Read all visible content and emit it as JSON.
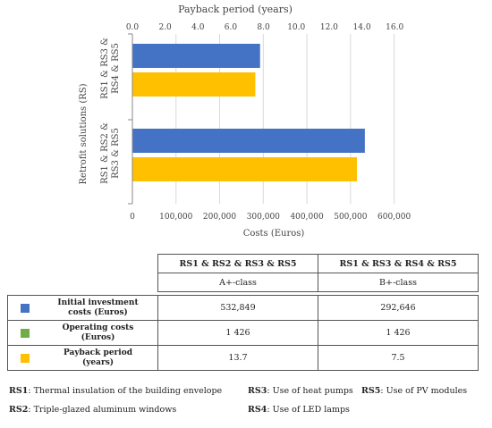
{
  "chart_data": {
    "type": "bar",
    "orientation": "horizontal",
    "categories": [
      "RS1 & RS3 & RS4 & RS5",
      "RS1 & RS2 & RS3 & RS5"
    ],
    "category_labels": [
      [
        "RS1 & RS3 &",
        "RS4 & RS5"
      ],
      [
        "RS1 & RS2 &",
        "RS3 & RS5"
      ]
    ],
    "ylabel": "Retrofit solutions (RS)",
    "series": [
      {
        "name": "Initial investment costs (Euros)",
        "axis": "bottom",
        "color": "#4472C4",
        "values": [
          292646,
          532849
        ]
      },
      {
        "name": "Payback period (years)",
        "axis": "top",
        "color": "#FFC000",
        "values": [
          7.5,
          13.7
        ]
      }
    ],
    "bottom_axis": {
      "label": "Costs (Euros)",
      "ticks": [
        "0",
        "100,000",
        "200,000",
        "300,000",
        "400,000",
        "500,000",
        "600,000"
      ],
      "min": 0,
      "max": 650000
    },
    "top_axis": {
      "label": "Payback period (years)",
      "ticks": [
        "0.0",
        "2.0",
        "4.0",
        "6.0",
        "8.0",
        "10.0",
        "12.0",
        "14.0",
        "16.0"
      ],
      "min": 0,
      "max": 17.3
    },
    "grid": true
  },
  "table": {
    "columns": [
      "RS1 & RS2 & RS3 & RS5",
      "RS1 & RS3 & RS4 & RS5"
    ],
    "classes": [
      "A+-class",
      "B+-class"
    ],
    "rows": [
      {
        "label_1": "Initial investment",
        "label_2": "costs (Euros)",
        "color": "#4472C4",
        "values": [
          "532,849",
          "292,646"
        ]
      },
      {
        "label_1": "Operating costs",
        "label_2": "(Euros)",
        "color": "#70AD47",
        "values": [
          "1 426",
          "1 426"
        ]
      },
      {
        "label_1": "Payback period",
        "label_2": "(years)",
        "color": "#FFC000",
        "values": [
          "13.7",
          "7.5"
        ]
      }
    ]
  },
  "notes": {
    "rs1_code": "RS1",
    "rs1_text": ": Thermal insulation of the building envelope",
    "rs2_code": "RS2",
    "rs2_text": ": Triple-glazed aluminum windows",
    "rs3_code": "RS3",
    "rs3_text": ": Use of heat pumps",
    "rs4_code": "RS4",
    "rs4_text": ": Use of LED lamps",
    "rs5_code": "RS5",
    "rs5_text": ": Use of PV modules"
  }
}
